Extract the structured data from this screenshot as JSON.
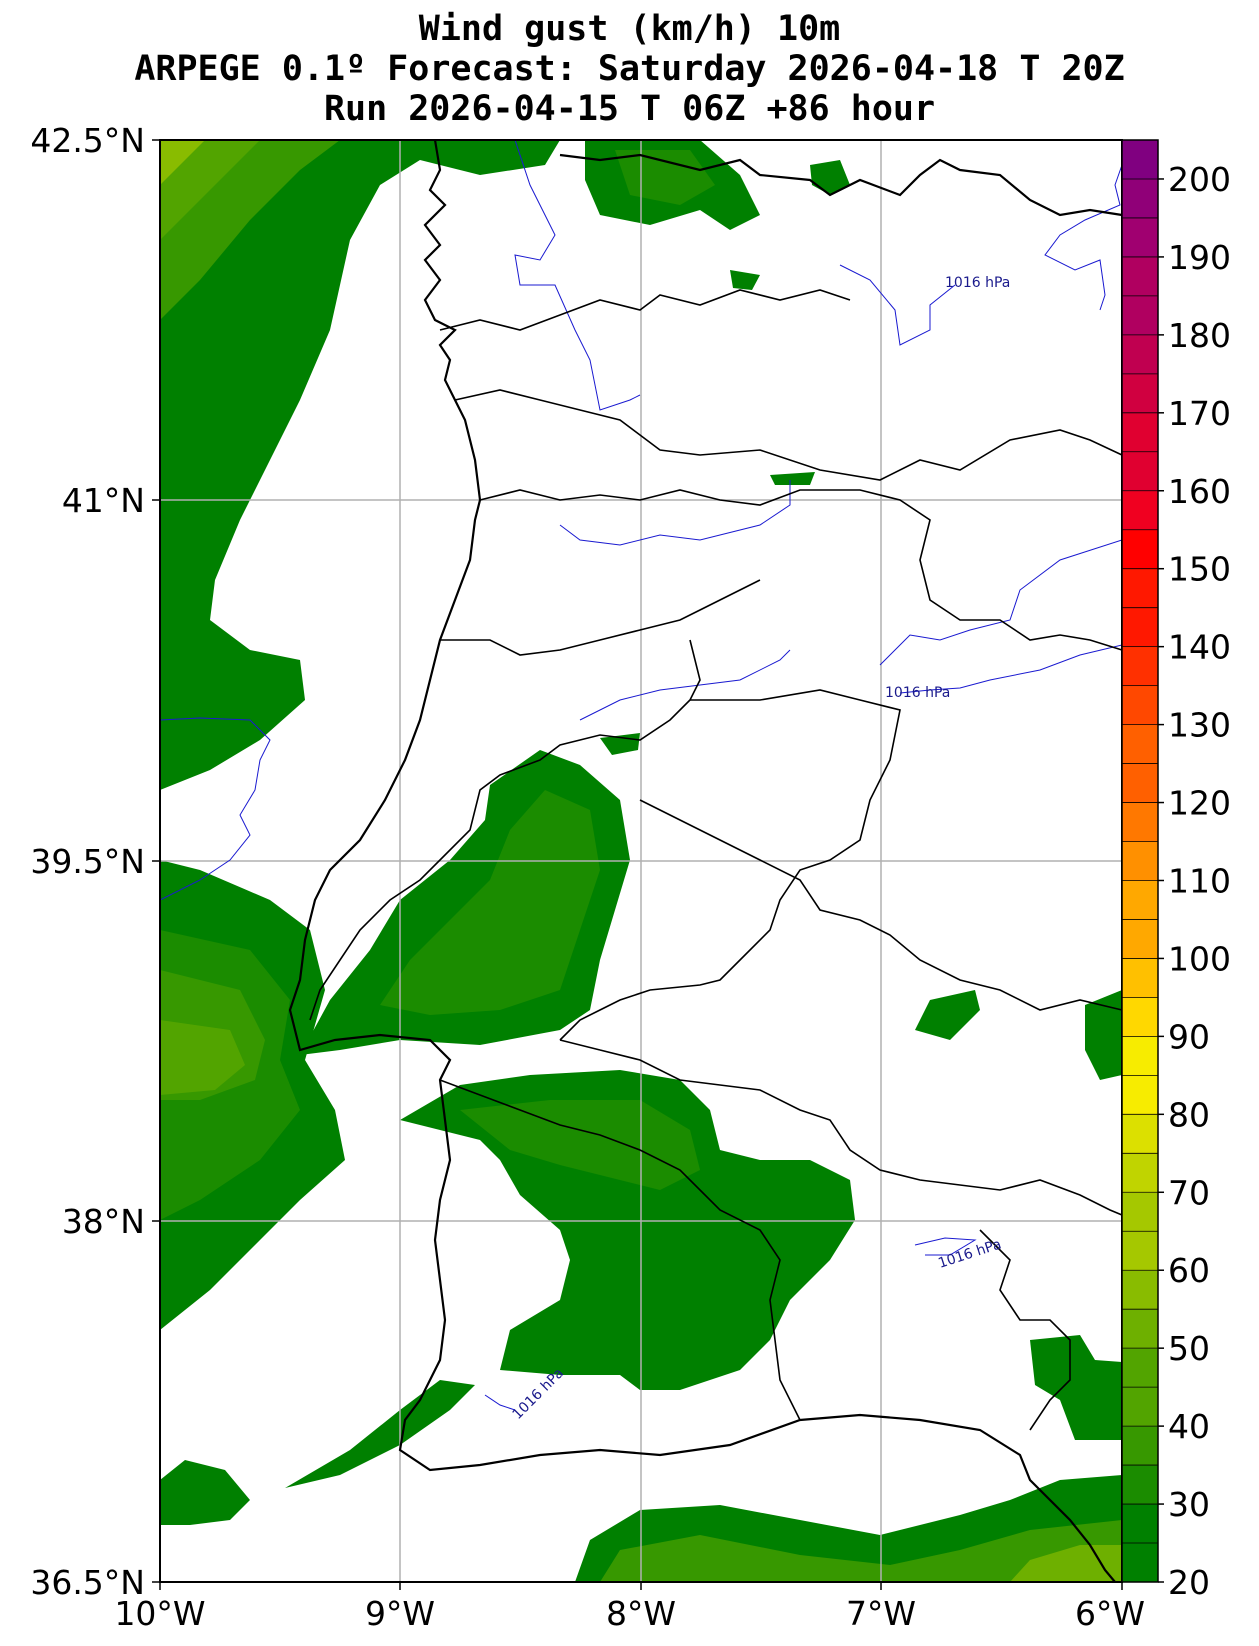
{
  "title": {
    "line1": "Wind gust (km/h) 10m",
    "line2": "ARPEGE 0.1º Forecast: Saturday 2026-04-18 T 20Z",
    "line3": "Run 2026-04-15 T 06Z +86 hour"
  },
  "axes": {
    "y_ticks": [
      "42.5°N",
      "41°N",
      "39.5°N",
      "38°N",
      "36.5°N"
    ],
    "x_ticks": [
      "10°W",
      "9°W",
      "8°W",
      "7°W",
      "6°W"
    ]
  },
  "colorbar": {
    "labels": [
      "20",
      "30",
      "40",
      "50",
      "60",
      "70",
      "80",
      "90",
      "100",
      "110",
      "120",
      "130",
      "140",
      "150",
      "160",
      "170",
      "180",
      "190",
      "200"
    ],
    "colors": [
      "#008000",
      "#1b8c00",
      "#379800",
      "#52a400",
      "#6eb000",
      "#89bc00",
      "#a5c800",
      "#c0d400",
      "#dce000",
      "#f7ec00",
      "#ffd800",
      "#ffc000",
      "#ffa800",
      "#ff9000",
      "#ff7800",
      "#ff6000",
      "#ff4800",
      "#ff3000",
      "#ff1800",
      "#ff0000",
      "#f00020",
      "#e00030",
      "#d00040",
      "#c00050",
      "#b00060",
      "#a00070",
      "#900078",
      "#800080"
    ]
  },
  "isobar_labels": [
    "1016 hPa",
    "1016 hPa",
    "1016 hPa",
    "1016 hPa"
  ],
  "legend": {
    "gust_min": 20,
    "gust_max": 205,
    "step": 5
  }
}
